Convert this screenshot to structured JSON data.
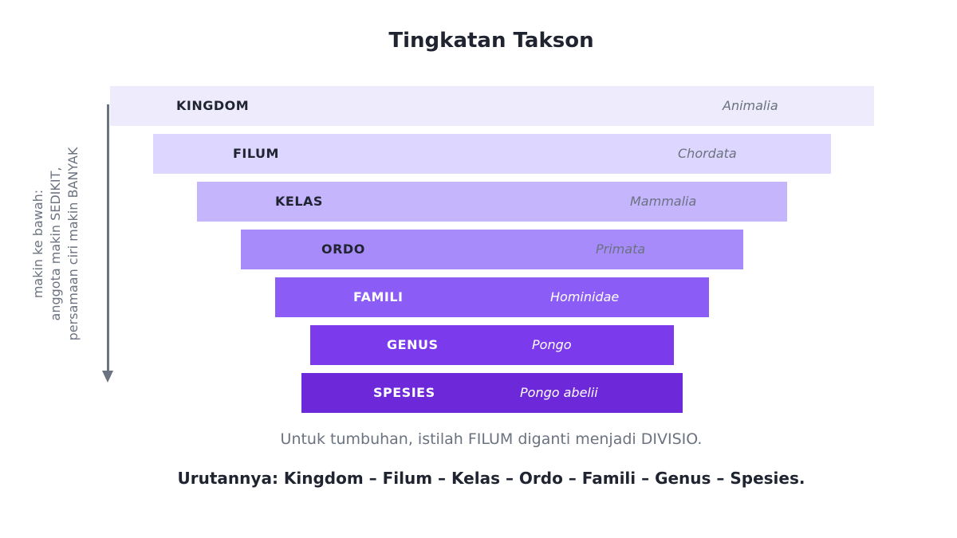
{
  "title": "Tingkatan Takson",
  "side_label": {
    "line1": "makin ke bawah:",
    "line2": "anggota makin SEDIKIT,",
    "line3": "persamaan ciri makin BANYAK"
  },
  "levels": [
    {
      "rank": "KINGDOM",
      "example": "Animalia",
      "color": "#edebfc",
      "rank_color": "#1f2430",
      "example_color": "#6b7280"
    },
    {
      "rank": "FILUM",
      "example": "Chordata",
      "color": "#ddd6fe",
      "rank_color": "#1f2430",
      "example_color": "#6b7280"
    },
    {
      "rank": "KELAS",
      "example": "Mammalia",
      "color": "#c4b5fd",
      "rank_color": "#1f2430",
      "example_color": "#6b7280"
    },
    {
      "rank": "ORDO",
      "example": "Primata",
      "color": "#a78bfa",
      "rank_color": "#1f2430",
      "example_color": "#6b7280"
    },
    {
      "rank": "FAMILI",
      "example": "Hominidae",
      "color": "#8b5cf6",
      "rank_color": "#ffffff",
      "example_color": "#ffffff"
    },
    {
      "rank": "GENUS",
      "example": "Pongo",
      "color": "#7c3aed",
      "rank_color": "#ffffff",
      "example_color": "#ffffff"
    },
    {
      "rank": "SPESIES",
      "example": "Pongo abelii",
      "color": "#6d28d9",
      "rank_color": "#ffffff",
      "example_color": "#ffffff"
    }
  ],
  "note": "Untuk tumbuhan, istilah FILUM diganti menjadi DIVISIO.",
  "summary": "Urutannya: Kingdom – Filum – Kelas – Ordo – Famili – Genus – Spesies."
}
